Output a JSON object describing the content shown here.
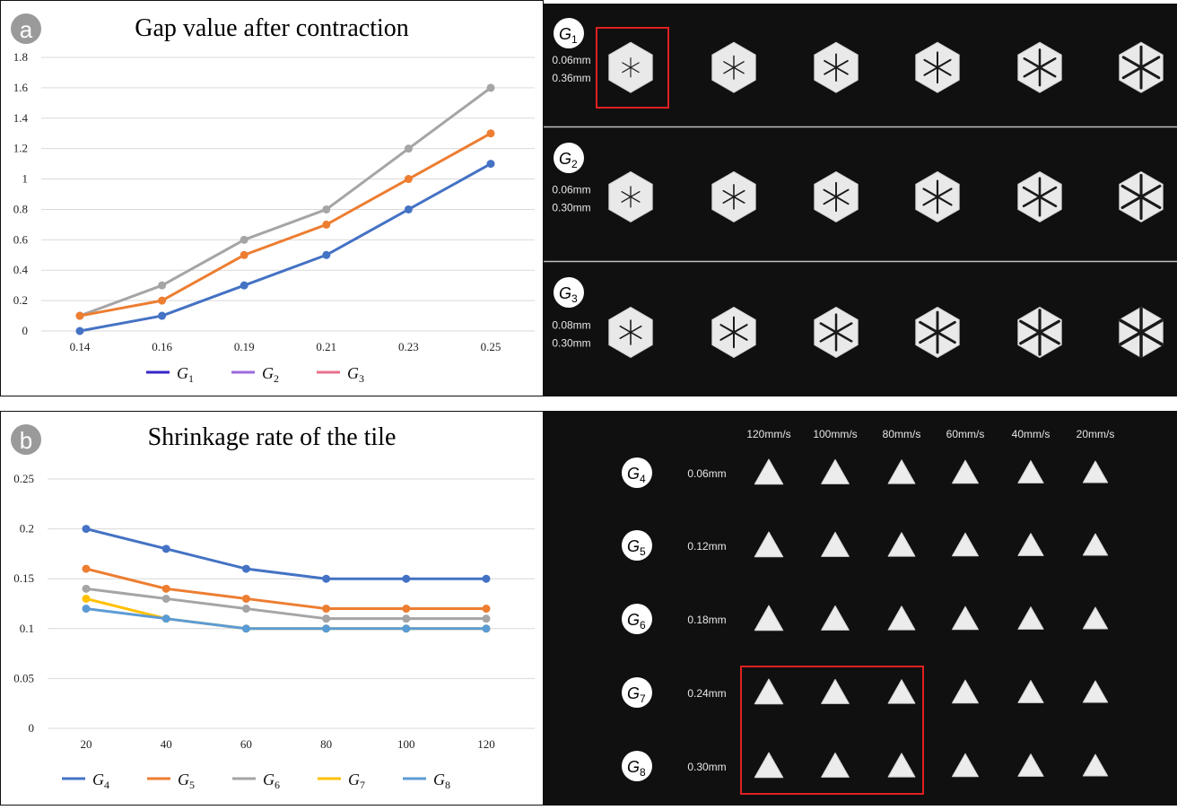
{
  "figure_labels": {
    "a": "a",
    "b": "b"
  },
  "colors": {
    "blue": "#4472C4",
    "orange": "#ED7D31",
    "gray": "#A5A5A5",
    "yellow": "#FFC000",
    "lightblue": "#5B9BD5",
    "legend_g1": "#3526C8",
    "legend_g2": "#9B6ADF",
    "legend_g3": "#E8708E"
  },
  "chart_data": [
    {
      "type": "line",
      "title": "Gap value after contraction",
      "categories": [
        "0.14",
        "0.16",
        "0.19",
        "0.21",
        "0.23",
        "0.25"
      ],
      "ylim": [
        0,
        1.8
      ],
      "yticks": [
        "0",
        "0.2",
        "0.4",
        "0.6",
        "0.8",
        "1",
        "1.2",
        "1.4",
        "1.6",
        "1.8"
      ],
      "grid": true,
      "series": [
        {
          "name": "G3",
          "color": "#A5A5A5",
          "values": [
            0.1,
            0.3,
            0.6,
            0.8,
            1.2,
            1.6
          ]
        },
        {
          "name": "G2",
          "color": "#ED7D31",
          "values": [
            0.1,
            0.2,
            0.5,
            0.7,
            1.0,
            1.3
          ]
        },
        {
          "name": "G1",
          "color": "#4472C4",
          "values": [
            0.0,
            0.1,
            0.3,
            0.5,
            0.8,
            1.1
          ]
        }
      ],
      "legend": [
        {
          "base": "G",
          "sub": "1",
          "color": "#3526C8"
        },
        {
          "base": "G",
          "sub": "2",
          "color": "#9B6ADF"
        },
        {
          "base": "G",
          "sub": "3",
          "color": "#E8708E"
        }
      ],
      "legend_position": "bottom"
    },
    {
      "type": "line",
      "title": "Shrinkage rate of the tile",
      "categories": [
        "20",
        "40",
        "60",
        "80",
        "100",
        "120"
      ],
      "ylim": [
        0,
        0.25
      ],
      "yticks": [
        "0",
        "0.05",
        "0.1",
        "0.15",
        "0.2",
        "0.25"
      ],
      "grid": true,
      "series": [
        {
          "name": "G7",
          "color": "#FFC000",
          "values": [
            0.13,
            0.11,
            0.1,
            0.1,
            0.1,
            0.1
          ]
        },
        {
          "name": "G6",
          "color": "#A5A5A5",
          "values": [
            0.14,
            0.13,
            0.12,
            0.11,
            0.11,
            0.11
          ]
        },
        {
          "name": "G5",
          "color": "#ED7D31",
          "values": [
            0.16,
            0.14,
            0.13,
            0.12,
            0.12,
            0.12
          ]
        },
        {
          "name": "G4",
          "color": "#4472C4",
          "values": [
            0.2,
            0.18,
            0.16,
            0.15,
            0.15,
            0.15
          ]
        },
        {
          "name": "G8",
          "color": "#5B9BD5",
          "values": [
            0.12,
            0.11,
            0.1,
            0.1,
            0.1,
            0.1
          ]
        }
      ],
      "legend": [
        {
          "base": "G",
          "sub": "4",
          "color": "#4472C4"
        },
        {
          "base": "G",
          "sub": "5",
          "color": "#ED7D31"
        },
        {
          "base": "G",
          "sub": "6",
          "color": "#A5A5A5"
        },
        {
          "base": "G",
          "sub": "7",
          "color": "#FFC000"
        },
        {
          "base": "G",
          "sub": "8",
          "color": "#5B9BD5"
        }
      ],
      "legend_position": "bottom"
    }
  ],
  "photo_a": {
    "rows": [
      {
        "base": "G",
        "sub": "1",
        "params": [
          "0.06mm",
          "0.36mm"
        ],
        "highlighted_index": 0
      },
      {
        "base": "G",
        "sub": "2",
        "params": [
          "0.06mm",
          "0.30mm"
        ]
      },
      {
        "base": "G",
        "sub": "3",
        "params": [
          "0.08mm",
          "0.30mm"
        ]
      }
    ],
    "hexagons_per_row": 6,
    "gap_levels": [
      [
        0.05,
        0.18,
        0.3,
        0.42,
        0.6,
        0.78
      ],
      [
        0.1,
        0.22,
        0.35,
        0.48,
        0.65,
        0.85
      ],
      [
        0.22,
        0.42,
        0.6,
        0.75,
        0.88,
        1.0
      ]
    ]
  },
  "photo_b": {
    "speeds": [
      "120mm/s",
      "100mm/s",
      "80mm/s",
      "60mm/s",
      "40mm/s",
      "20mm/s"
    ],
    "rows": [
      {
        "base": "G",
        "sub": "4",
        "thickness": "0.06mm"
      },
      {
        "base": "G",
        "sub": "5",
        "thickness": "0.12mm"
      },
      {
        "base": "G",
        "sub": "6",
        "thickness": "0.18mm"
      },
      {
        "base": "G",
        "sub": "7",
        "thickness": "0.24mm"
      },
      {
        "base": "G",
        "sub": "8",
        "thickness": "0.30mm"
      }
    ],
    "highlight": "G7-G8, 120mm/s to 80mm/s"
  }
}
